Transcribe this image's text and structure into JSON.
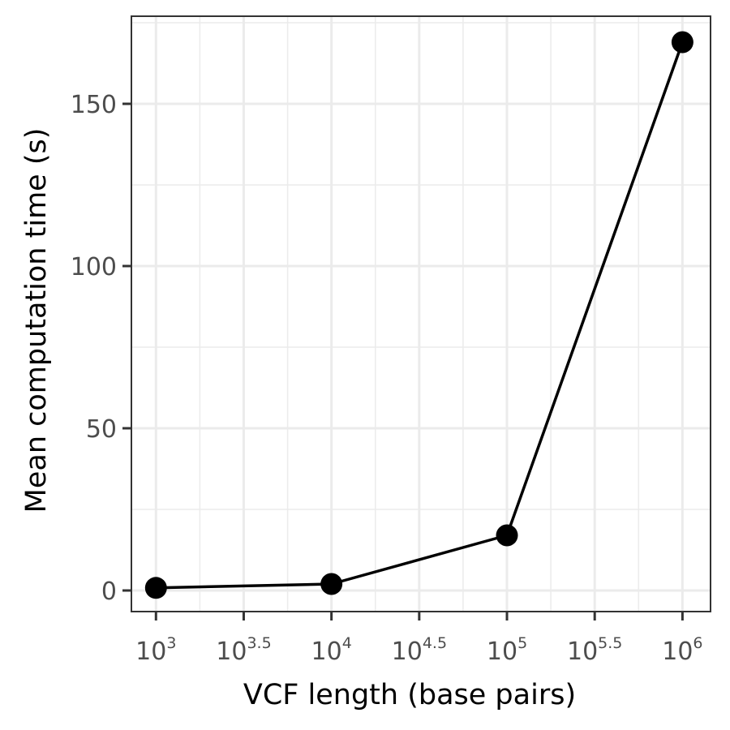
{
  "chart_data": {
    "type": "line",
    "title": "",
    "xlabel": "VCF length (base pairs)",
    "ylabel": "Mean computation time (s)",
    "x_scale": "log10",
    "xlim_log10": [
      2.86,
      6.16
    ],
    "ylim": [
      -6.5,
      177
    ],
    "x_ticks": [
      {
        "base": "10",
        "exp": "3",
        "value_log10": 3
      },
      {
        "base": "10",
        "exp": "3.5",
        "value_log10": 3.5
      },
      {
        "base": "10",
        "exp": "4",
        "value_log10": 4
      },
      {
        "base": "10",
        "exp": "4.5",
        "value_log10": 4.5
      },
      {
        "base": "10",
        "exp": "5",
        "value_log10": 5
      },
      {
        "base": "10",
        "exp": "5.5",
        "value_log10": 5.5
      },
      {
        "base": "10",
        "exp": "6",
        "value_log10": 6
      }
    ],
    "y_ticks": [
      {
        "label": "0",
        "value": 0
      },
      {
        "label": "50",
        "value": 50
      },
      {
        "label": "100",
        "value": 100
      },
      {
        "label": "150",
        "value": 150
      }
    ],
    "series": [
      {
        "name": "mean computation time",
        "color": "#000000",
        "x": [
          1000,
          10000,
          100000,
          1000000
        ],
        "x_log10": [
          3,
          4,
          5,
          6
        ],
        "y": [
          0.8,
          2.0,
          17.0,
          169.0
        ]
      }
    ],
    "grid": true,
    "theme": {
      "background": "#ffffff",
      "grid_color": "#ebebeb",
      "border_color": "#333333",
      "tick_label_color": "#4d4d4d"
    }
  }
}
